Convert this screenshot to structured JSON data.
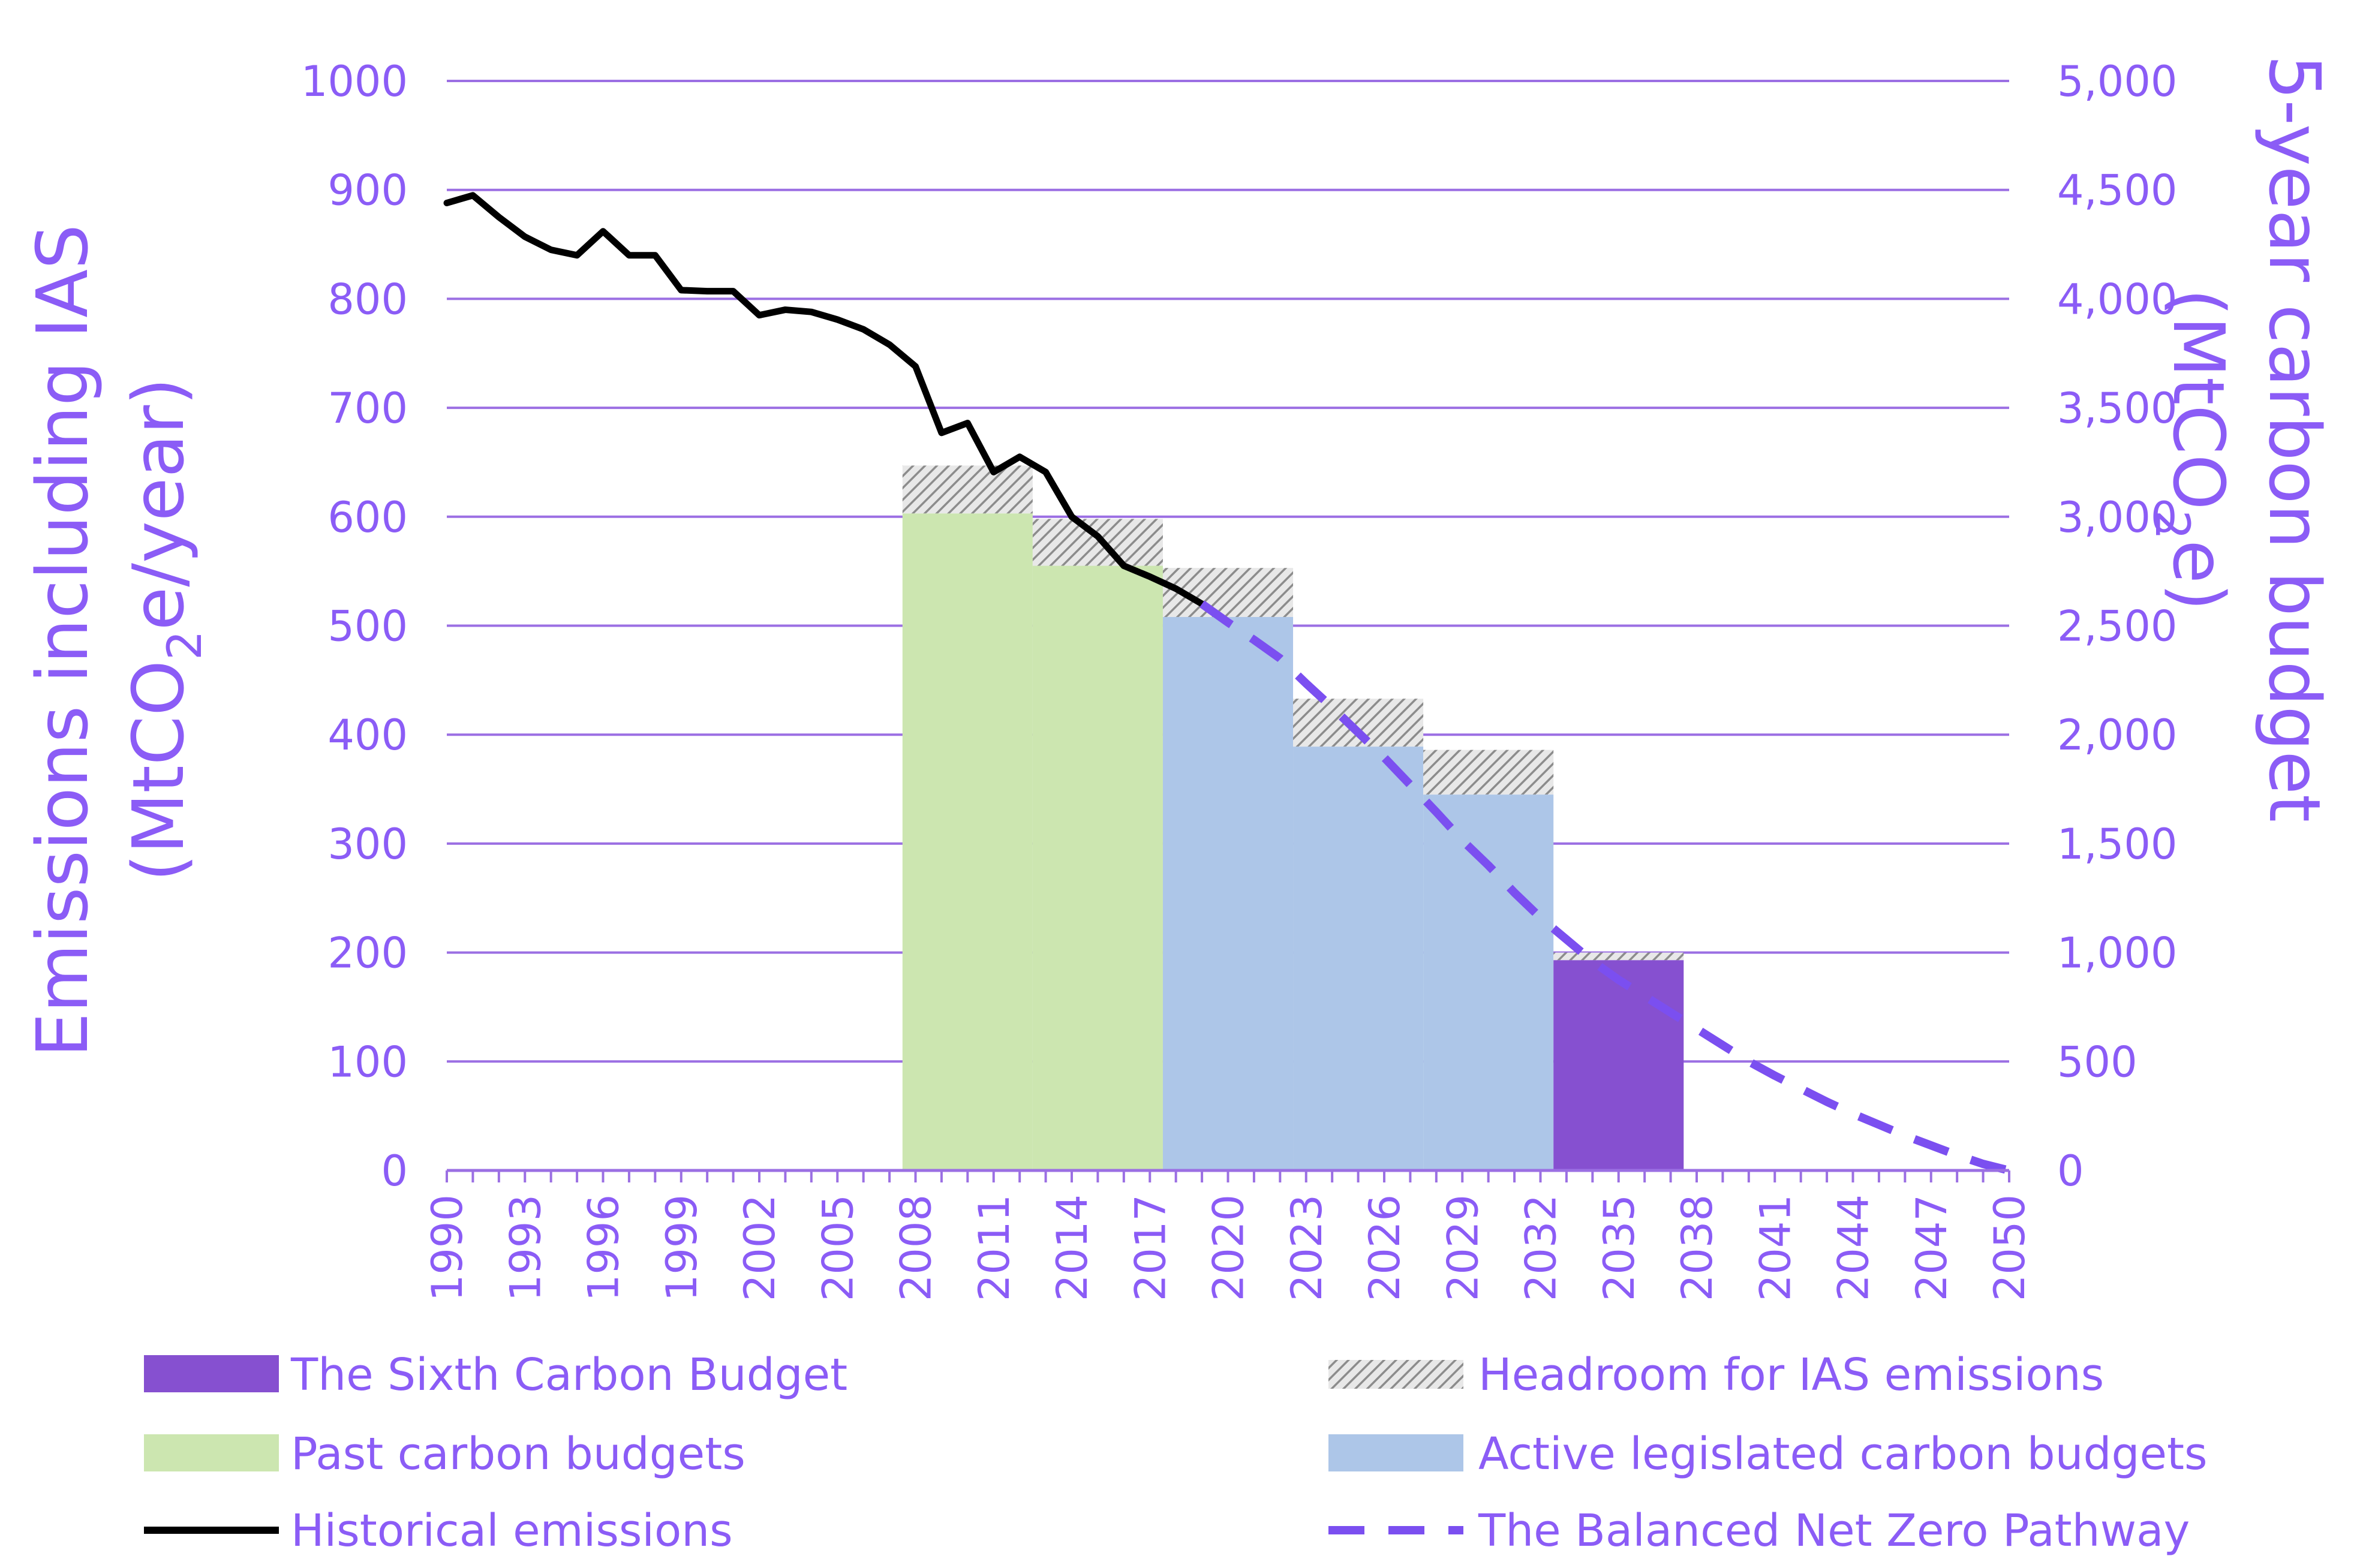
{
  "chart_data": {
    "type": "bar",
    "title": "",
    "xlabel": "",
    "ylabel": "Emissions including IAS (MtCO2e/year)",
    "ylabel_parts": [
      "Emissions including IAS",
      "(MtCO",
      "2",
      "e/year)"
    ],
    "y2label": "5-year carbon budget (MtCO2e)",
    "y2label_parts": [
      "5-year carbon budget",
      "(MtCO",
      "2",
      "e)"
    ],
    "ylim": [
      0,
      1000
    ],
    "y2lim": [
      0,
      5000
    ],
    "yticks": [
      "0",
      "100",
      "200",
      "300",
      "400",
      "500",
      "600",
      "700",
      "800",
      "900",
      "1000"
    ],
    "y2ticks": [
      "0",
      "500",
      "1,000",
      "1,500",
      "2,000",
      "2,500",
      "3,000",
      "3,500",
      "4,000",
      "4,500",
      "5,000"
    ],
    "xlim": [
      1990,
      2050
    ],
    "xticks": [
      "1990",
      "1993",
      "1996",
      "1999",
      "2002",
      "2005",
      "2008",
      "2011",
      "2014",
      "2017",
      "2020",
      "2023",
      "2026",
      "2029",
      "2032",
      "2035",
      "2038",
      "2041",
      "2044",
      "2047",
      "2050"
    ],
    "grid": true,
    "colors": {
      "axis_text": "#8B5CF6",
      "gridline": "#9B6FE3",
      "sixth_budget": "#8650D0",
      "past_budgets": "#CCE6B0",
      "active_budgets": "#ADC6E8",
      "headroom": "#A6A6A6",
      "historical": "#000000",
      "pathway": "#7B4FF0"
    },
    "budgets": [
      {
        "period": "2008-2012",
        "start": 2008,
        "end": 2012,
        "annual": 603,
        "headroom_top": 647,
        "category": "past"
      },
      {
        "period": "2013-2017",
        "start": 2013,
        "end": 2017,
        "annual": 555,
        "headroom_top": 598,
        "category": "past"
      },
      {
        "period": "2018-2022",
        "start": 2018,
        "end": 2022,
        "annual": 508,
        "headroom_top": 553,
        "category": "active"
      },
      {
        "period": "2023-2027",
        "start": 2023,
        "end": 2027,
        "annual": 389,
        "headroom_top": 433,
        "category": "active"
      },
      {
        "period": "2028-2032",
        "start": 2028,
        "end": 2032,
        "annual": 345,
        "headroom_top": 386,
        "category": "active"
      },
      {
        "period": "2033-2037",
        "start": 2033,
        "end": 2037,
        "annual": 193,
        "headroom_top": 200,
        "category": "sixth"
      }
    ],
    "series": [
      {
        "name": "Historical emissions",
        "x": [
          1990,
          1991,
          1992,
          1993,
          1994,
          1995,
          1996,
          1997,
          1998,
          1999,
          2000,
          2001,
          2002,
          2003,
          2004,
          2005,
          2006,
          2007,
          2008,
          2009,
          2010,
          2011,
          2012,
          2013,
          2014,
          2015,
          2016,
          2017,
          2018,
          2019
        ],
        "values": [
          888,
          895,
          875,
          857,
          845,
          840,
          862,
          840,
          840,
          808,
          807,
          807,
          785,
          790,
          788,
          781,
          772,
          758,
          738,
          677,
          686,
          641,
          655,
          641,
          600,
          582,
          555,
          545,
          534,
          520
        ]
      },
      {
        "name": "The Balanced Net Zero Pathway",
        "x": [
          2019,
          2020,
          2021,
          2022,
          2023,
          2024,
          2025,
          2026,
          2027,
          2028,
          2029,
          2030,
          2031,
          2032,
          2033,
          2034,
          2035,
          2036,
          2037,
          2038,
          2039,
          2040,
          2041,
          2042,
          2043,
          2044,
          2045,
          2046,
          2047,
          2048,
          2049,
          2050
        ],
        "values": [
          520,
          503,
          487,
          470,
          447,
          425,
          402,
          379,
          354,
          329,
          303,
          280,
          255,
          232,
          212,
          192,
          175,
          160,
          145,
          130,
          115,
          100,
          87,
          75,
          63,
          52,
          42,
          32,
          23,
          14,
          6,
          0
        ]
      }
    ],
    "legend": {
      "sixth": "The Sixth Carbon Budget",
      "headroom": "Headroom for IAS emissions",
      "past": "Past carbon budgets",
      "active": "Active legislated carbon budgets",
      "historical": "Historical emissions",
      "pathway": "The Balanced Net Zero Pathway"
    }
  }
}
